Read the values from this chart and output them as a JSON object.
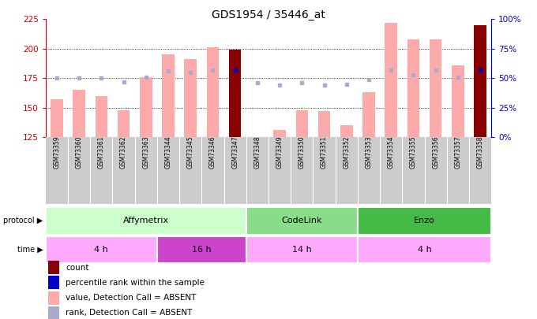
{
  "title": "GDS1954 / 35446_at",
  "samples": [
    "GSM73359",
    "GSM73360",
    "GSM73361",
    "GSM73362",
    "GSM73363",
    "GSM73344",
    "GSM73345",
    "GSM73346",
    "GSM73347",
    "GSM73348",
    "GSM73349",
    "GSM73350",
    "GSM73351",
    "GSM73352",
    "GSM73353",
    "GSM73354",
    "GSM73355",
    "GSM73356",
    "GSM73357",
    "GSM73358"
  ],
  "values": [
    157,
    165,
    160,
    148,
    176,
    195,
    191,
    201,
    199,
    125,
    131,
    148,
    147,
    135,
    163,
    222,
    208,
    208,
    186,
    220
  ],
  "rank_pct": [
    50,
    50,
    50,
    47,
    51,
    56,
    55,
    57,
    57,
    46,
    44,
    46,
    44,
    45,
    49,
    57,
    53,
    57,
    51,
    57
  ],
  "is_dark_red": [
    false,
    false,
    false,
    false,
    false,
    false,
    false,
    false,
    true,
    false,
    false,
    false,
    false,
    false,
    false,
    false,
    false,
    false,
    false,
    true
  ],
  "ylim_left": [
    125,
    225
  ],
  "ylim_right": [
    0,
    100
  ],
  "yticks_left": [
    125,
    150,
    175,
    200,
    225
  ],
  "yticks_right": [
    0,
    25,
    50,
    75,
    100
  ],
  "left_color": "#cc0000",
  "right_color": "#0000cc",
  "bar_color_pink": "#ffaaaa",
  "bar_color_darkred": "#880000",
  "rank_dot_color": "#aaaacc",
  "rank_dot_dark": "#0000cc",
  "bg_color": "#ffffff",
  "xlabel_bg": "#cccccc",
  "protocols": [
    {
      "label": "Affymetrix",
      "start": 0,
      "end": 9,
      "color": "#ccffcc"
    },
    {
      "label": "CodeLink",
      "start": 9,
      "end": 14,
      "color": "#88dd88"
    },
    {
      "label": "Enzo",
      "start": 14,
      "end": 20,
      "color": "#44bb44"
    }
  ],
  "times": [
    {
      "label": "4 h",
      "start": 0,
      "end": 5,
      "color": "#ffaaff"
    },
    {
      "label": "16 h",
      "start": 5,
      "end": 9,
      "color": "#cc44cc"
    },
    {
      "label": "14 h",
      "start": 9,
      "end": 14,
      "color": "#ffaaff"
    },
    {
      "label": "4 h",
      "start": 14,
      "end": 20,
      "color": "#ffaaff"
    }
  ],
  "legend_items": [
    {
      "label": "count",
      "color": "#880000"
    },
    {
      "label": "percentile rank within the sample",
      "color": "#0000cc"
    },
    {
      "label": "value, Detection Call = ABSENT",
      "color": "#ffaaaa"
    },
    {
      "label": "rank, Detection Call = ABSENT",
      "color": "#aaaacc"
    }
  ]
}
